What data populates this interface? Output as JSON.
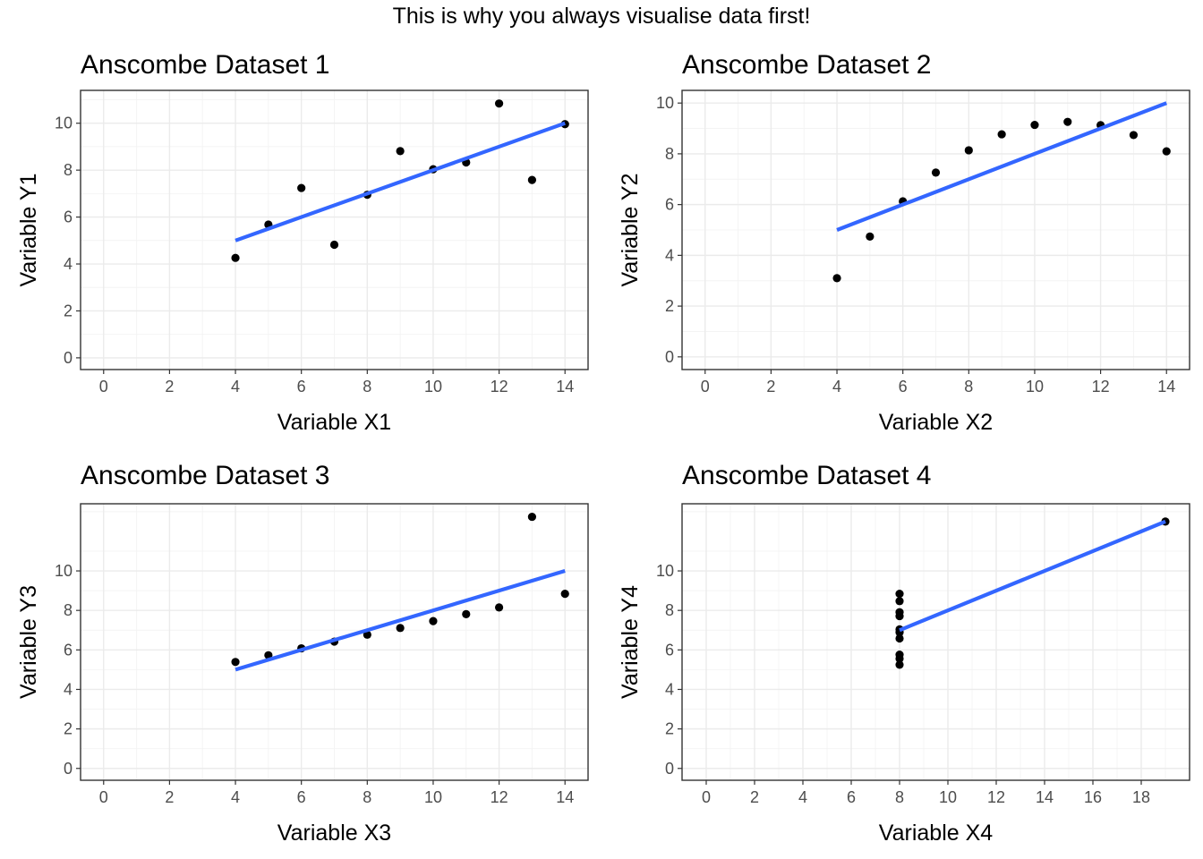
{
  "title": "This is why you always visualise data first!",
  "colors": {
    "fit_line": "#3366ff",
    "point": "#000000",
    "grid_major": "#ebebeb",
    "grid_minor": "#f4f4f4",
    "border": "#333333"
  },
  "chart_data": [
    {
      "type": "scatter",
      "title": "Anscombe Dataset 1",
      "xlabel": "Variable X1",
      "ylabel": "Variable Y1",
      "xlim": [
        -0.7,
        14.7
      ],
      "ylim": [
        -0.5,
        11.4
      ],
      "xticks": [
        0,
        2,
        4,
        6,
        8,
        10,
        12,
        14
      ],
      "yticks": [
        0,
        2,
        4,
        6,
        8,
        10
      ],
      "points": {
        "x": [
          10,
          8,
          13,
          9,
          11,
          14,
          6,
          4,
          12,
          7,
          5
        ],
        "y": [
          8.04,
          6.95,
          7.58,
          8.81,
          8.33,
          9.96,
          7.24,
          4.26,
          10.84,
          4.82,
          5.68
        ]
      },
      "fit_line": {
        "x": [
          4,
          14
        ],
        "y": [
          5.0,
          10.0
        ]
      }
    },
    {
      "type": "scatter",
      "title": "Anscombe Dataset 2",
      "xlabel": "Variable X2",
      "ylabel": "Variable Y2",
      "xlim": [
        -0.7,
        14.7
      ],
      "ylim": [
        -0.5,
        10.5
      ],
      "xticks": [
        0,
        2,
        4,
        6,
        8,
        10,
        12,
        14
      ],
      "yticks": [
        0,
        2,
        4,
        6,
        8,
        10
      ],
      "points": {
        "x": [
          10,
          8,
          13,
          9,
          11,
          14,
          6,
          4,
          12,
          7,
          5
        ],
        "y": [
          9.14,
          8.14,
          8.74,
          8.77,
          9.26,
          8.1,
          6.13,
          3.1,
          9.13,
          7.26,
          4.74
        ]
      },
      "fit_line": {
        "x": [
          4,
          14
        ],
        "y": [
          5.0,
          10.0
        ]
      }
    },
    {
      "type": "scatter",
      "title": "Anscombe Dataset 3",
      "xlabel": "Variable X3",
      "ylabel": "Variable Y3",
      "xlim": [
        -0.7,
        14.7
      ],
      "ylim": [
        -0.6,
        13.4
      ],
      "xticks": [
        0,
        2,
        4,
        6,
        8,
        10,
        12,
        14
      ],
      "yticks": [
        0,
        2,
        4,
        6,
        8,
        10
      ],
      "points": {
        "x": [
          10,
          8,
          13,
          9,
          11,
          14,
          6,
          4,
          12,
          7,
          5
        ],
        "y": [
          7.46,
          6.77,
          12.74,
          7.11,
          7.81,
          8.84,
          6.08,
          5.39,
          8.15,
          6.42,
          5.73
        ]
      },
      "fit_line": {
        "x": [
          4,
          14
        ],
        "y": [
          5.0,
          10.0
        ]
      }
    },
    {
      "type": "scatter",
      "title": "Anscombe Dataset 4",
      "xlabel": "Variable X4",
      "ylabel": "Variable Y4",
      "xlim": [
        -1.0,
        20.0
      ],
      "ylim": [
        -0.6,
        13.4
      ],
      "xticks": [
        0,
        2,
        4,
        6,
        8,
        10,
        12,
        14,
        16,
        18
      ],
      "yticks": [
        0,
        2,
        4,
        6,
        8,
        10
      ],
      "points": {
        "x": [
          8,
          8,
          8,
          8,
          8,
          8,
          8,
          19,
          8,
          8,
          8
        ],
        "y": [
          6.58,
          5.76,
          7.71,
          8.84,
          8.47,
          7.04,
          5.25,
          12.5,
          5.56,
          7.91,
          6.89
        ]
      },
      "fit_line": {
        "x": [
          8,
          19
        ],
        "y": [
          7.0,
          12.5
        ]
      }
    }
  ]
}
